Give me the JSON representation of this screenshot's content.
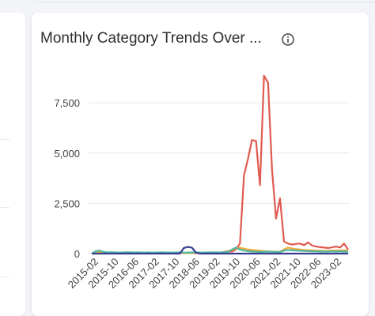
{
  "card": {
    "title": "Monthly Category Trends Over ...",
    "info_icon": "info-icon"
  },
  "chart_data": {
    "type": "line",
    "ylim": [
      0,
      9000
    ],
    "y_ticks": [
      0,
      2500,
      5000,
      7500
    ],
    "y_tick_labels": [
      "0",
      "2,500",
      "5,000",
      "7,500"
    ],
    "x_tick_labels": [
      "2015-02",
      "2015-10",
      "2016-06",
      "2017-02",
      "2017-10",
      "2018-06",
      "2019-02",
      "2019-10",
      "2020-06",
      "2021-02",
      "2021-10",
      "2022-06",
      "2023-02"
    ],
    "grid": true,
    "series": [
      {
        "color": "#e05a4f",
        "values": [
          0,
          10,
          20,
          15,
          20,
          25,
          30,
          20,
          40,
          30,
          20,
          25,
          30,
          40,
          30,
          20,
          30,
          40,
          30,
          50,
          30,
          20,
          40,
          30,
          40,
          30,
          20,
          30,
          40,
          50,
          60,
          50,
          40,
          80,
          120,
          100,
          200,
          500,
          3900,
          4700,
          5650,
          5600,
          3400,
          8850,
          8500,
          4200,
          1750,
          2750,
          600,
          500,
          450,
          480,
          500,
          420,
          560,
          400,
          350,
          320,
          300,
          280,
          310,
          350,
          300,
          500,
          200
        ]
      },
      {
        "color": "#f0a93a",
        "values": [
          0,
          50,
          80,
          40,
          60,
          50,
          40,
          30,
          30,
          40,
          30,
          20,
          20,
          40,
          30,
          30,
          40,
          30,
          30,
          20,
          30,
          30,
          40,
          30,
          20,
          30,
          40,
          50,
          30,
          40,
          40,
          40,
          50,
          60,
          120,
          180,
          250,
          280,
          250,
          200,
          180,
          160,
          140,
          120,
          110,
          100,
          90,
          95,
          200,
          300,
          250,
          220,
          200,
          180,
          170,
          160,
          150,
          140,
          130,
          140,
          150,
          160,
          150,
          170,
          150
        ]
      },
      {
        "color": "#4cb7a0",
        "values": [
          0,
          120,
          150,
          80,
          60,
          70,
          60,
          50,
          60,
          70,
          60,
          60,
          60,
          50,
          60,
          50,
          50,
          60,
          60,
          50,
          50,
          60,
          60,
          50,
          50,
          60,
          60,
          50,
          50,
          60,
          60,
          60,
          60,
          70,
          80,
          200,
          300,
          200,
          150,
          120,
          100,
          90,
          80,
          90,
          100,
          90,
          80,
          70,
          150,
          180,
          160,
          150,
          140,
          130,
          120,
          110,
          110,
          100,
          100,
          100,
          110,
          100,
          110,
          100,
          100
        ]
      },
      {
        "color": "#3a3c8f",
        "values": [
          0,
          0,
          0,
          0,
          0,
          0,
          0,
          0,
          0,
          0,
          0,
          0,
          0,
          0,
          0,
          0,
          0,
          0,
          0,
          0,
          0,
          0,
          0,
          280,
          330,
          300,
          50,
          0,
          0,
          0,
          0,
          0,
          0,
          0,
          0,
          0,
          0,
          0,
          0,
          0,
          0,
          0,
          0,
          0,
          0,
          0,
          0,
          0,
          0,
          0,
          0,
          0,
          0,
          0,
          0,
          0,
          0,
          0,
          0,
          0,
          0,
          0,
          0,
          0,
          0
        ]
      }
    ]
  }
}
